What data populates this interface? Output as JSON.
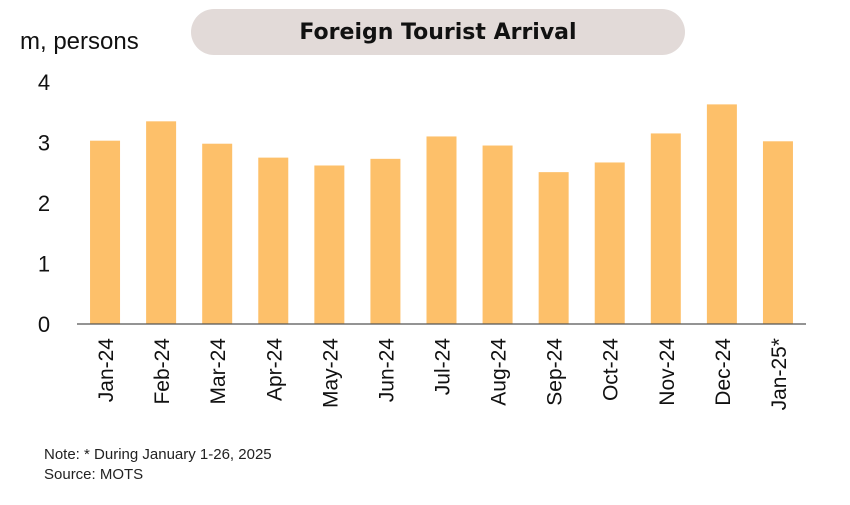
{
  "header": {
    "title": "Foreign Tourist Arrival",
    "unit": "m, persons"
  },
  "footer": {
    "note": "Note: * During January 1-26, 2025",
    "source": "Source: MOTS"
  },
  "colors": {
    "bar": "#fdc06a",
    "axis": "#555555",
    "title_bg": "#e2dad8"
  },
  "chart_data": {
    "type": "bar",
    "categories": [
      "Jan-24",
      "Feb-24",
      "Mar-24",
      "Apr-24",
      "May-24",
      "Jun-24",
      "Jul-24",
      "Aug-24",
      "Sep-24",
      "Oct-24",
      "Nov-24",
      "Dec-24",
      "Jan-25*"
    ],
    "values": [
      3.03,
      3.35,
      2.98,
      2.75,
      2.62,
      2.73,
      3.1,
      2.95,
      2.51,
      2.67,
      3.15,
      3.63,
      3.02
    ],
    "yticks": [
      0,
      1,
      2,
      3,
      4
    ],
    "ylim": [
      0,
      4
    ],
    "ylabel": "m, persons",
    "grid": false,
    "legend": "none"
  }
}
